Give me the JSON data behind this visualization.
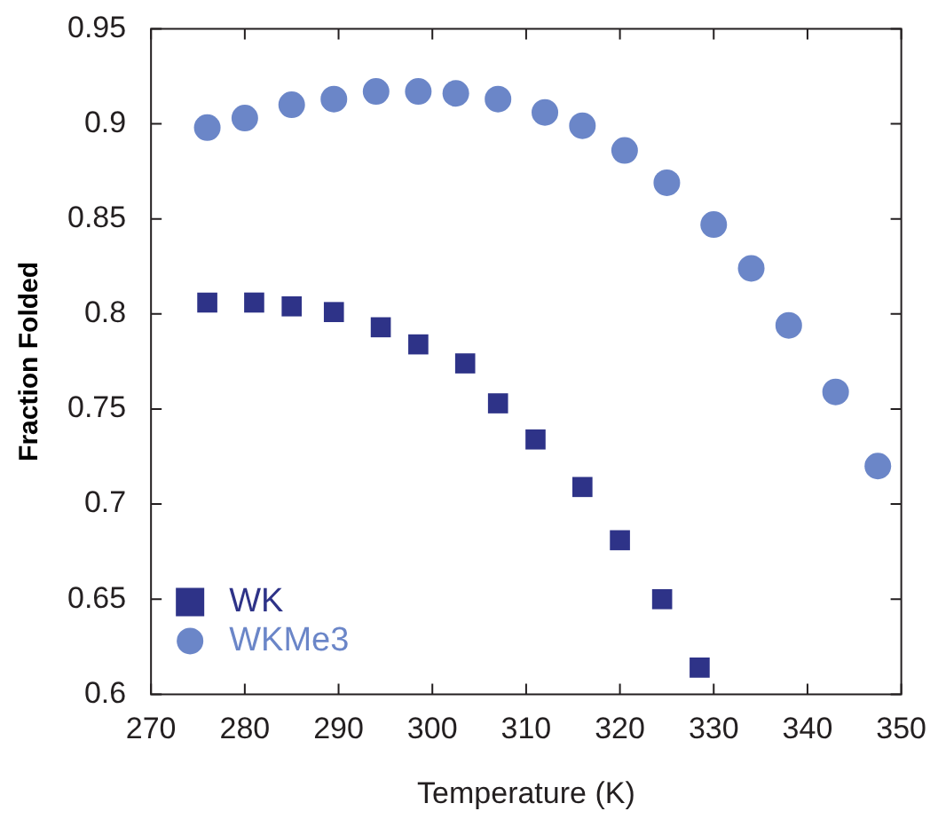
{
  "chart_data": {
    "type": "scatter",
    "xlabel": "Temperature (K)",
    "ylabel": "Fraction Folded",
    "xlim": [
      270,
      350
    ],
    "xticks": [
      270,
      280,
      290,
      300,
      310,
      320,
      330,
      340,
      350
    ],
    "ylim": [
      0.6,
      0.95
    ],
    "yticks": [
      0.6,
      0.65,
      0.7,
      0.75,
      0.8,
      0.85,
      0.9,
      0.95
    ],
    "legend": "bottom left",
    "series": [
      {
        "name": "WK",
        "color": "#2e3388",
        "marker": "square",
        "x": [
          276,
          281,
          285,
          289.5,
          294.5,
          298.5,
          303.5,
          307,
          311,
          316,
          320,
          324.5,
          328.5
        ],
        "values": [
          0.806,
          0.806,
          0.804,
          0.801,
          0.793,
          0.784,
          0.774,
          0.753,
          0.734,
          0.709,
          0.681,
          0.65,
          0.614
        ]
      },
      {
        "name": "WKMe3",
        "color": "#6b86c8",
        "marker": "circle",
        "x": [
          276,
          280,
          285,
          289.5,
          294,
          298.5,
          302.5,
          307,
          312,
          316,
          320.5,
          325,
          330,
          334,
          338,
          343,
          347.5
        ],
        "values": [
          0.898,
          0.903,
          0.91,
          0.913,
          0.917,
          0.917,
          0.916,
          0.913,
          0.906,
          0.899,
          0.886,
          0.869,
          0.847,
          0.824,
          0.794,
          0.759,
          0.72
        ]
      }
    ]
  }
}
